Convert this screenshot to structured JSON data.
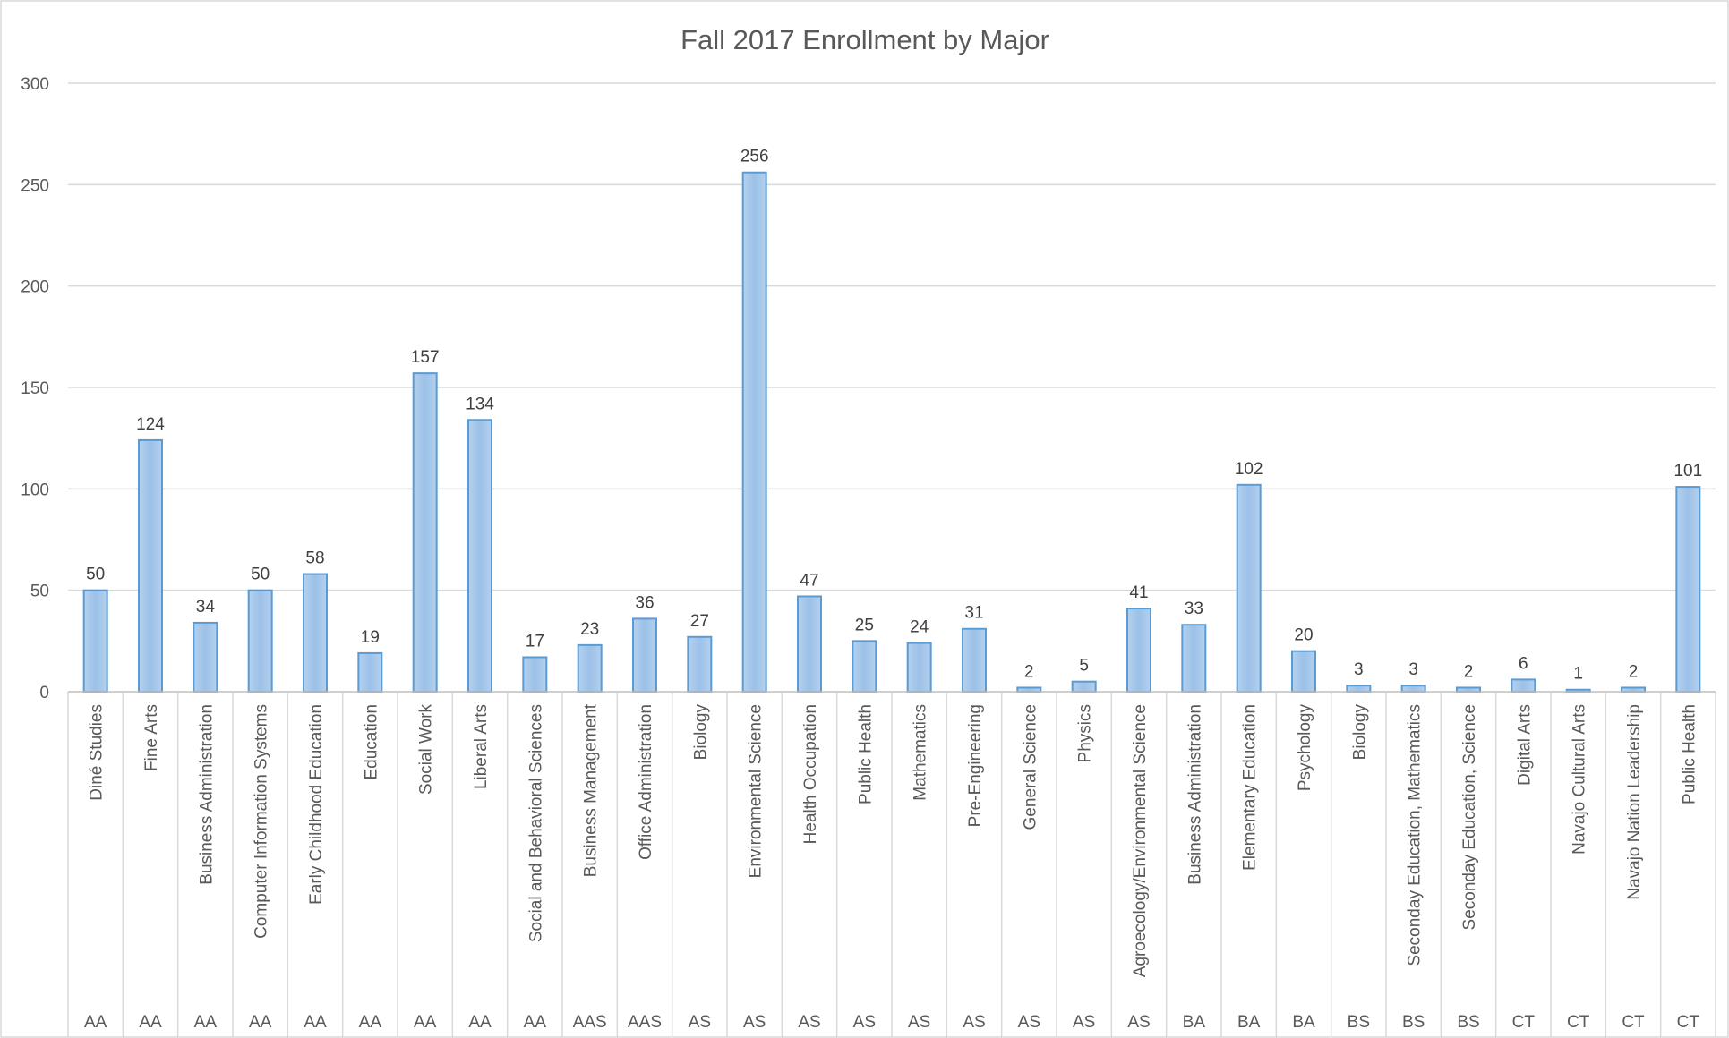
{
  "chart_data": {
    "type": "bar",
    "title": "Fall 2017 Enrollment by Major",
    "xlabel": "",
    "ylabel": "",
    "ylim": [
      0,
      300
    ],
    "y_ticks": [
      0,
      50,
      100,
      150,
      200,
      250,
      300
    ],
    "grid": true,
    "legend": "none",
    "bar_color": "#9dc3e6",
    "bar_border_color": "#5b9bd5",
    "categories": [
      {
        "major": "Diné Studies",
        "degree": "AA",
        "value": 50
      },
      {
        "major": "Fine Arts",
        "degree": "AA",
        "value": 124
      },
      {
        "major": "Business Administration",
        "degree": "AA",
        "value": 34
      },
      {
        "major": "Computer Information Systems",
        "degree": "AA",
        "value": 50
      },
      {
        "major": "Early Childhood Education",
        "degree": "AA",
        "value": 58
      },
      {
        "major": "Education",
        "degree": "AA",
        "value": 19
      },
      {
        "major": "Social Work",
        "degree": "AA",
        "value": 157
      },
      {
        "major": "Liberal Arts",
        "degree": "AA",
        "value": 134
      },
      {
        "major": "Social and Behavioral Sciences",
        "degree": "AA",
        "value": 17
      },
      {
        "major": "Business Management",
        "degree": "AAS",
        "value": 23
      },
      {
        "major": "Office Administration",
        "degree": "AAS",
        "value": 36
      },
      {
        "major": "Biology",
        "degree": "AS",
        "value": 27
      },
      {
        "major": "Environmental Science",
        "degree": "AS",
        "value": 256
      },
      {
        "major": "Health Occupation",
        "degree": "AS",
        "value": 47
      },
      {
        "major": "Public Health",
        "degree": "AS",
        "value": 25
      },
      {
        "major": "Mathematics",
        "degree": "AS",
        "value": 24
      },
      {
        "major": "Pre-Engineering",
        "degree": "AS",
        "value": 31
      },
      {
        "major": "General Science",
        "degree": "AS",
        "value": 2
      },
      {
        "major": "Physics",
        "degree": "AS",
        "value": 5
      },
      {
        "major": "Agroecology/Environmental Science",
        "degree": "AS",
        "value": 41
      },
      {
        "major": "Business Administration",
        "degree": "BA",
        "value": 33
      },
      {
        "major": "Elementary Education",
        "degree": "BA",
        "value": 102
      },
      {
        "major": "Psychology",
        "degree": "BA",
        "value": 20
      },
      {
        "major": "Biology",
        "degree": "BS",
        "value": 3
      },
      {
        "major": "Seconday Education, Mathematics",
        "degree": "BS",
        "value": 3
      },
      {
        "major": "Seconday Education, Science",
        "degree": "BS",
        "value": 2
      },
      {
        "major": "Digital Arts",
        "degree": "CT",
        "value": 6
      },
      {
        "major": "Navajo Cultural Arts",
        "degree": "CT",
        "value": 1
      },
      {
        "major": "Navajo Nation Leadership",
        "degree": "CT",
        "value": 2
      },
      {
        "major": "Public Health",
        "degree": "CT",
        "value": 101
      }
    ]
  }
}
